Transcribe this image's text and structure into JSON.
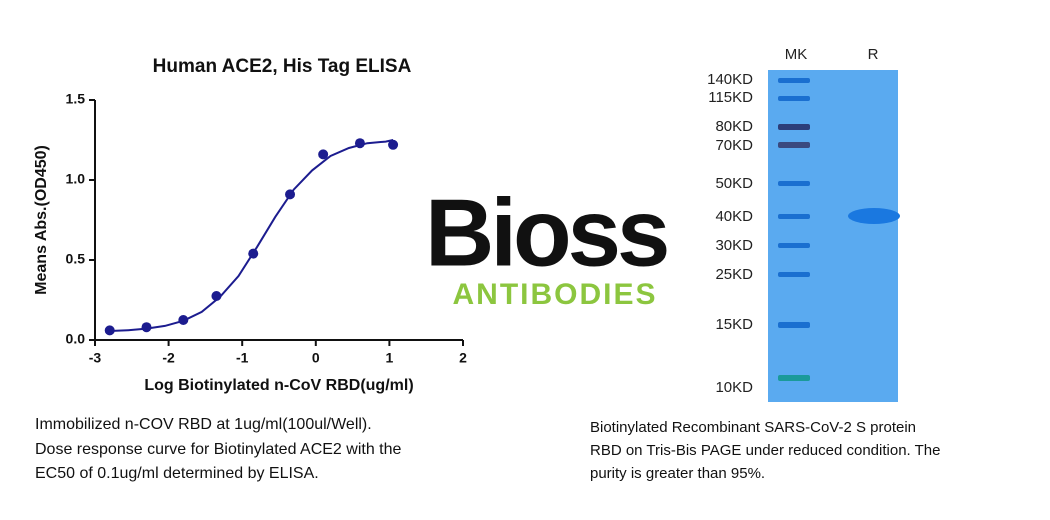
{
  "chart_data": {
    "type": "scatter",
    "title": "Human ACE2, His Tag ELISA",
    "x_label": "Log Biotinylated n-CoV RBD(ug/ml)",
    "y_label": "Means Abs.(OD450)",
    "x": [
      -2.8,
      -2.3,
      -1.8,
      -1.35,
      -0.85,
      -0.35,
      0.1,
      0.6,
      1.05
    ],
    "values": [
      0.06,
      0.08,
      0.125,
      0.275,
      0.54,
      0.91,
      1.16,
      1.23,
      1.22
    ],
    "color": "#1c1c8f",
    "fit_line": {
      "x": [
        -2.8,
        -2.55,
        -2.3,
        -2.05,
        -1.8,
        -1.55,
        -1.3,
        -1.05,
        -0.8,
        -0.55,
        -0.3,
        -0.05,
        0.2,
        0.45,
        0.7,
        0.95,
        1.05
      ],
      "values": [
        0.056,
        0.061,
        0.071,
        0.088,
        0.12,
        0.176,
        0.27,
        0.4,
        0.58,
        0.77,
        0.94,
        1.06,
        1.15,
        1.2,
        1.23,
        1.24,
        1.25
      ]
    },
    "xlim": [
      -3,
      2
    ],
    "xticks": [
      -3,
      -2,
      -1,
      0,
      1,
      2
    ],
    "ylim": [
      0,
      1.5
    ],
    "yticks": [
      {
        "value": 0,
        "label": "0.0"
      },
      0.5,
      {
        "value": 1,
        "label": "1.0"
      },
      1.5
    ],
    "grid": false,
    "caption": [
      "Immobilized n-COV RBD at 1ug/ml(100ul/Well).",
      "Dose response curve for Biotinylated ACE2 with the",
      "EC50 of 0.1ug/ml determined by ELISA."
    ]
  },
  "logo": {
    "name": "Bioss",
    "tagline": "ANTIBODIES"
  },
  "gel": {
    "lanes": [
      "MK",
      "R"
    ],
    "markers": [
      "140KD",
      "115KD",
      "80KD",
      "70KD",
      "50KD",
      "40KD",
      "30KD",
      "25KD",
      "15KD",
      "10KD"
    ],
    "caption": [
      "Biotinylated Recombinant SARS-CoV-2 S protein",
      "RBD on Tris-Bis PAGE under reduced condition. The",
      "purity is greater than 95%."
    ]
  }
}
